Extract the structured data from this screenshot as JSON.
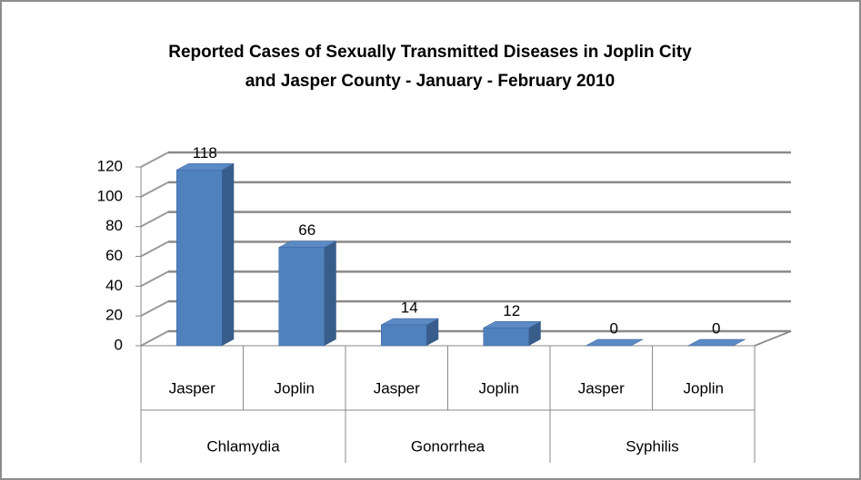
{
  "chart_data": {
    "type": "bar",
    "title": [
      "Reported Cases of Sexually Transmitted Diseases in Joplin City",
      "and Jasper County  - January - February 2010"
    ],
    "categories": [
      "Jasper",
      "Joplin",
      "Jasper",
      "Joplin",
      "Jasper",
      "Joplin"
    ],
    "groups": [
      "Chlamydia",
      "Gonorrhea",
      "Syphilis"
    ],
    "values": [
      118,
      66,
      14,
      12,
      0,
      0
    ],
    "color": "#4f81bd",
    "ylim": [
      0,
      120
    ],
    "yticks": [
      0,
      20,
      40,
      60,
      80,
      100,
      120
    ],
    "grid": true
  }
}
